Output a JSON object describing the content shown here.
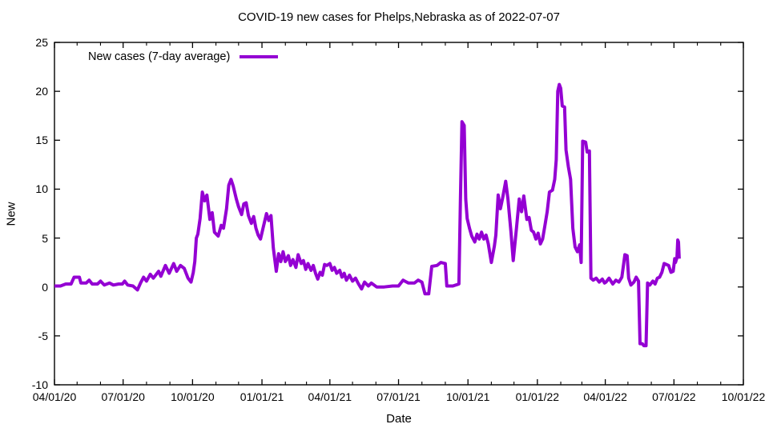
{
  "chart_data": {
    "type": "line",
    "title": "COVID-19 new cases for Phelps,Nebraska as of 2022-07-07",
    "xlabel": "Date",
    "ylabel": "New",
    "grid": false,
    "background_color": "#ffffff",
    "border_color": "#000000",
    "x_unit": "days since 2020-04-01",
    "xlim": [
      0,
      913
    ],
    "ylim": [
      -10,
      25
    ],
    "y_ticks": [
      -10,
      -5,
      0,
      5,
      10,
      15,
      20,
      25
    ],
    "x_major_ticks": {
      "days": [
        0,
        91,
        183,
        275,
        365,
        456,
        548,
        640,
        730,
        821,
        913
      ],
      "labels": [
        "04/01/20",
        "07/01/20",
        "10/01/20",
        "01/01/21",
        "04/01/21",
        "07/01/21",
        "10/01/21",
        "01/01/22",
        "04/01/22",
        "07/01/22",
        "10/01/22"
      ]
    },
    "x_minor_tick_days": [
      30,
      61,
      122,
      153,
      214,
      244,
      306,
      334,
      395,
      426,
      487,
      518,
      579,
      609,
      671,
      699,
      760,
      791,
      852,
      883
    ],
    "legend": {
      "position": "top-left-inside",
      "entries": [
        {
          "label": "New cases (7-day average)",
          "color": "#9400d3"
        }
      ]
    },
    "series": [
      {
        "name": "New cases (7-day average)",
        "color": "#9400d3",
        "line_width": 4,
        "points": [
          [
            0,
            0.1
          ],
          [
            8,
            0.1
          ],
          [
            15,
            0.3
          ],
          [
            22,
            0.3
          ],
          [
            26,
            1.0
          ],
          [
            33,
            1.0
          ],
          [
            35,
            0.4
          ],
          [
            42,
            0.4
          ],
          [
            46,
            0.7
          ],
          [
            50,
            0.3
          ],
          [
            57,
            0.3
          ],
          [
            61,
            0.6
          ],
          [
            66,
            0.2
          ],
          [
            73,
            0.4
          ],
          [
            78,
            0.2
          ],
          [
            85,
            0.3
          ],
          [
            90,
            0.3
          ],
          [
            93,
            0.6
          ],
          [
            97,
            0.2
          ],
          [
            104,
            0.1
          ],
          [
            110,
            -0.3
          ],
          [
            114,
            0.4
          ],
          [
            118,
            1.0
          ],
          [
            122,
            0.6
          ],
          [
            127,
            1.3
          ],
          [
            131,
            0.9
          ],
          [
            138,
            1.6
          ],
          [
            141,
            1.1
          ],
          [
            147,
            2.2
          ],
          [
            152,
            1.4
          ],
          [
            158,
            2.4
          ],
          [
            162,
            1.6
          ],
          [
            167,
            2.2
          ],
          [
            172,
            1.9
          ],
          [
            177,
            0.9
          ],
          [
            181,
            0.5
          ],
          [
            184,
            1.5
          ],
          [
            186,
            2.6
          ],
          [
            188,
            5.0
          ],
          [
            190,
            5.4
          ],
          [
            193,
            7.0
          ],
          [
            196,
            9.7
          ],
          [
            199,
            8.8
          ],
          [
            202,
            9.4
          ],
          [
            206,
            6.9
          ],
          [
            209,
            7.6
          ],
          [
            212,
            5.6
          ],
          [
            217,
            5.2
          ],
          [
            221,
            6.3
          ],
          [
            224,
            6.0
          ],
          [
            228,
            8.0
          ],
          [
            231,
            10.4
          ],
          [
            234,
            11.0
          ],
          [
            237,
            10.3
          ],
          [
            241,
            9.0
          ],
          [
            244,
            8.2
          ],
          [
            248,
            7.4
          ],
          [
            251,
            8.5
          ],
          [
            254,
            8.6
          ],
          [
            257,
            7.3
          ],
          [
            261,
            6.5
          ],
          [
            264,
            7.2
          ],
          [
            267,
            6.0
          ],
          [
            270,
            5.3
          ],
          [
            273,
            4.9
          ],
          [
            277,
            6.2
          ],
          [
            281,
            7.5
          ],
          [
            284,
            6.8
          ],
          [
            287,
            7.3
          ],
          [
            290,
            4.0
          ],
          [
            294,
            1.6
          ],
          [
            297,
            3.4
          ],
          [
            300,
            2.6
          ],
          [
            303,
            3.6
          ],
          [
            306,
            2.6
          ],
          [
            310,
            3.2
          ],
          [
            313,
            2.2
          ],
          [
            316,
            2.8
          ],
          [
            320,
            2.0
          ],
          [
            323,
            3.3
          ],
          [
            327,
            2.4
          ],
          [
            330,
            2.7
          ],
          [
            333,
            1.8
          ],
          [
            336,
            2.4
          ],
          [
            340,
            1.7
          ],
          [
            343,
            2.2
          ],
          [
            346,
            1.4
          ],
          [
            349,
            0.8
          ],
          [
            352,
            1.5
          ],
          [
            355,
            1.2
          ],
          [
            358,
            2.3
          ],
          [
            361,
            2.2
          ],
          [
            365,
            2.4
          ],
          [
            368,
            1.7
          ],
          [
            371,
            2.0
          ],
          [
            374,
            1.4
          ],
          [
            378,
            1.7
          ],
          [
            381,
            1.0
          ],
          [
            384,
            1.4
          ],
          [
            387,
            0.7
          ],
          [
            391,
            1.2
          ],
          [
            395,
            0.6
          ],
          [
            399,
            0.9
          ],
          [
            403,
            0.3
          ],
          [
            407,
            -0.2
          ],
          [
            411,
            0.5
          ],
          [
            416,
            0.1
          ],
          [
            420,
            0.4
          ],
          [
            427,
            0.0
          ],
          [
            437,
            0.0
          ],
          [
            448,
            0.1
          ],
          [
            456,
            0.1
          ],
          [
            462,
            0.7
          ],
          [
            469,
            0.4
          ],
          [
            477,
            0.4
          ],
          [
            482,
            0.7
          ],
          [
            487,
            0.5
          ],
          [
            491,
            -0.7
          ],
          [
            496,
            -0.7
          ],
          [
            500,
            2.1
          ],
          [
            507,
            2.2
          ],
          [
            512,
            2.5
          ],
          [
            518,
            2.4
          ],
          [
            520,
            0.1
          ],
          [
            528,
            0.1
          ],
          [
            536,
            0.3
          ],
          [
            538,
            9.0
          ],
          [
            540,
            16.9
          ],
          [
            543,
            16.5
          ],
          [
            545,
            9.0
          ],
          [
            547,
            7.0
          ],
          [
            550,
            6.0
          ],
          [
            553,
            5.2
          ],
          [
            557,
            4.6
          ],
          [
            560,
            5.4
          ],
          [
            563,
            4.9
          ],
          [
            566,
            5.6
          ],
          [
            569,
            4.9
          ],
          [
            572,
            5.3
          ],
          [
            575,
            4.4
          ],
          [
            579,
            2.5
          ],
          [
            583,
            4.2
          ],
          [
            585,
            5.3
          ],
          [
            588,
            9.4
          ],
          [
            591,
            8.0
          ],
          [
            594,
            9.1
          ],
          [
            598,
            10.8
          ],
          [
            601,
            9.0
          ],
          [
            605,
            5.6
          ],
          [
            608,
            2.7
          ],
          [
            612,
            5.8
          ],
          [
            616,
            9.0
          ],
          [
            619,
            7.7
          ],
          [
            622,
            9.3
          ],
          [
            626,
            6.9
          ],
          [
            629,
            7.1
          ],
          [
            632,
            5.8
          ],
          [
            635,
            5.6
          ],
          [
            638,
            4.9
          ],
          [
            641,
            5.5
          ],
          [
            644,
            4.4
          ],
          [
            647,
            4.9
          ],
          [
            650,
            6.3
          ],
          [
            653,
            7.7
          ],
          [
            656,
            9.7
          ],
          [
            660,
            9.9
          ],
          [
            663,
            11.0
          ],
          [
            665,
            13.0
          ],
          [
            667,
            20.0
          ],
          [
            669,
            20.7
          ],
          [
            671,
            20.3
          ],
          [
            673,
            18.5
          ],
          [
            676,
            18.4
          ],
          [
            678,
            14.0
          ],
          [
            681,
            12.3
          ],
          [
            684,
            11.0
          ],
          [
            687,
            6.0
          ],
          [
            690,
            4.1
          ],
          [
            693,
            3.6
          ],
          [
            696,
            4.3
          ],
          [
            698,
            2.5
          ],
          [
            700,
            14.9
          ],
          [
            704,
            14.8
          ],
          [
            706,
            13.8
          ],
          [
            709,
            13.9
          ],
          [
            711,
            0.9
          ],
          [
            714,
            0.7
          ],
          [
            718,
            0.9
          ],
          [
            722,
            0.5
          ],
          [
            726,
            0.8
          ],
          [
            729,
            0.4
          ],
          [
            731,
            0.5
          ],
          [
            735,
            0.9
          ],
          [
            740,
            0.3
          ],
          [
            744,
            0.7
          ],
          [
            748,
            0.5
          ],
          [
            752,
            1.0
          ],
          [
            756,
            3.3
          ],
          [
            759,
            3.2
          ],
          [
            761,
            0.9
          ],
          [
            764,
            0.2
          ],
          [
            768,
            0.5
          ],
          [
            771,
            1.0
          ],
          [
            774,
            0.6
          ],
          [
            776,
            -5.8
          ],
          [
            779,
            -5.8
          ],
          [
            781,
            -6.0
          ],
          [
            784,
            -6.0
          ],
          [
            786,
            0.4
          ],
          [
            789,
            0.2
          ],
          [
            793,
            0.6
          ],
          [
            796,
            0.3
          ],
          [
            799,
            0.9
          ],
          [
            802,
            1.0
          ],
          [
            805,
            1.5
          ],
          [
            808,
            2.4
          ],
          [
            811,
            2.3
          ],
          [
            814,
            2.2
          ],
          [
            817,
            1.5
          ],
          [
            820,
            1.6
          ],
          [
            822,
            2.9
          ],
          [
            823,
            2.5
          ],
          [
            825,
            3.0
          ],
          [
            826,
            4.8
          ],
          [
            827,
            4.6
          ],
          [
            828,
            2.9
          ]
        ]
      }
    ]
  }
}
